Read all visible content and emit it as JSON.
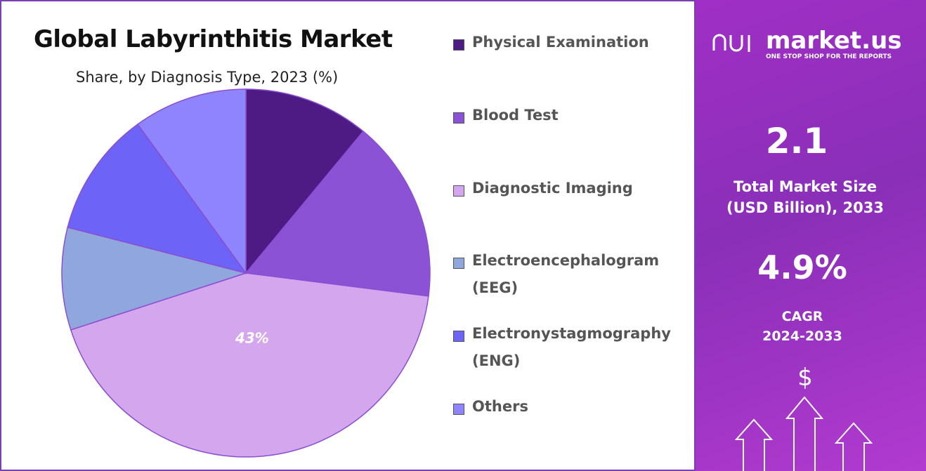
{
  "chart_data": {
    "type": "pie",
    "title": "Global Labyrinthitis Market",
    "subtitle": "Share, by Diagnosis Type, 2023 (%)",
    "categories": [
      "Physical Examination",
      "Blood Test",
      "Diagnostic Imaging",
      "Electroencephalogram (EEG)",
      "Electronystagmography (ENG)",
      "Others"
    ],
    "values": [
      11,
      16,
      43,
      9,
      11,
      10
    ],
    "value_labels": [
      null,
      null,
      "43%",
      null,
      null,
      null
    ],
    "colors": [
      "#4e1a84",
      "#8c52d6",
      "#d3a6ee",
      "#8fa7dc",
      "#6d63f6",
      "#8e84fb"
    ]
  },
  "side_panel": {
    "brand": "market.us",
    "tagline": "ONE STOP SHOP FOR THE REPORTS",
    "market_size": "2.1",
    "market_size_label_1": "Total Market Size",
    "market_size_label_2": "(USD Billion), 2033",
    "cagr": "4.9%",
    "cagr_label_1": "CAGR",
    "cagr_label_2": "2024-2033",
    "currency_symbol": "$"
  }
}
